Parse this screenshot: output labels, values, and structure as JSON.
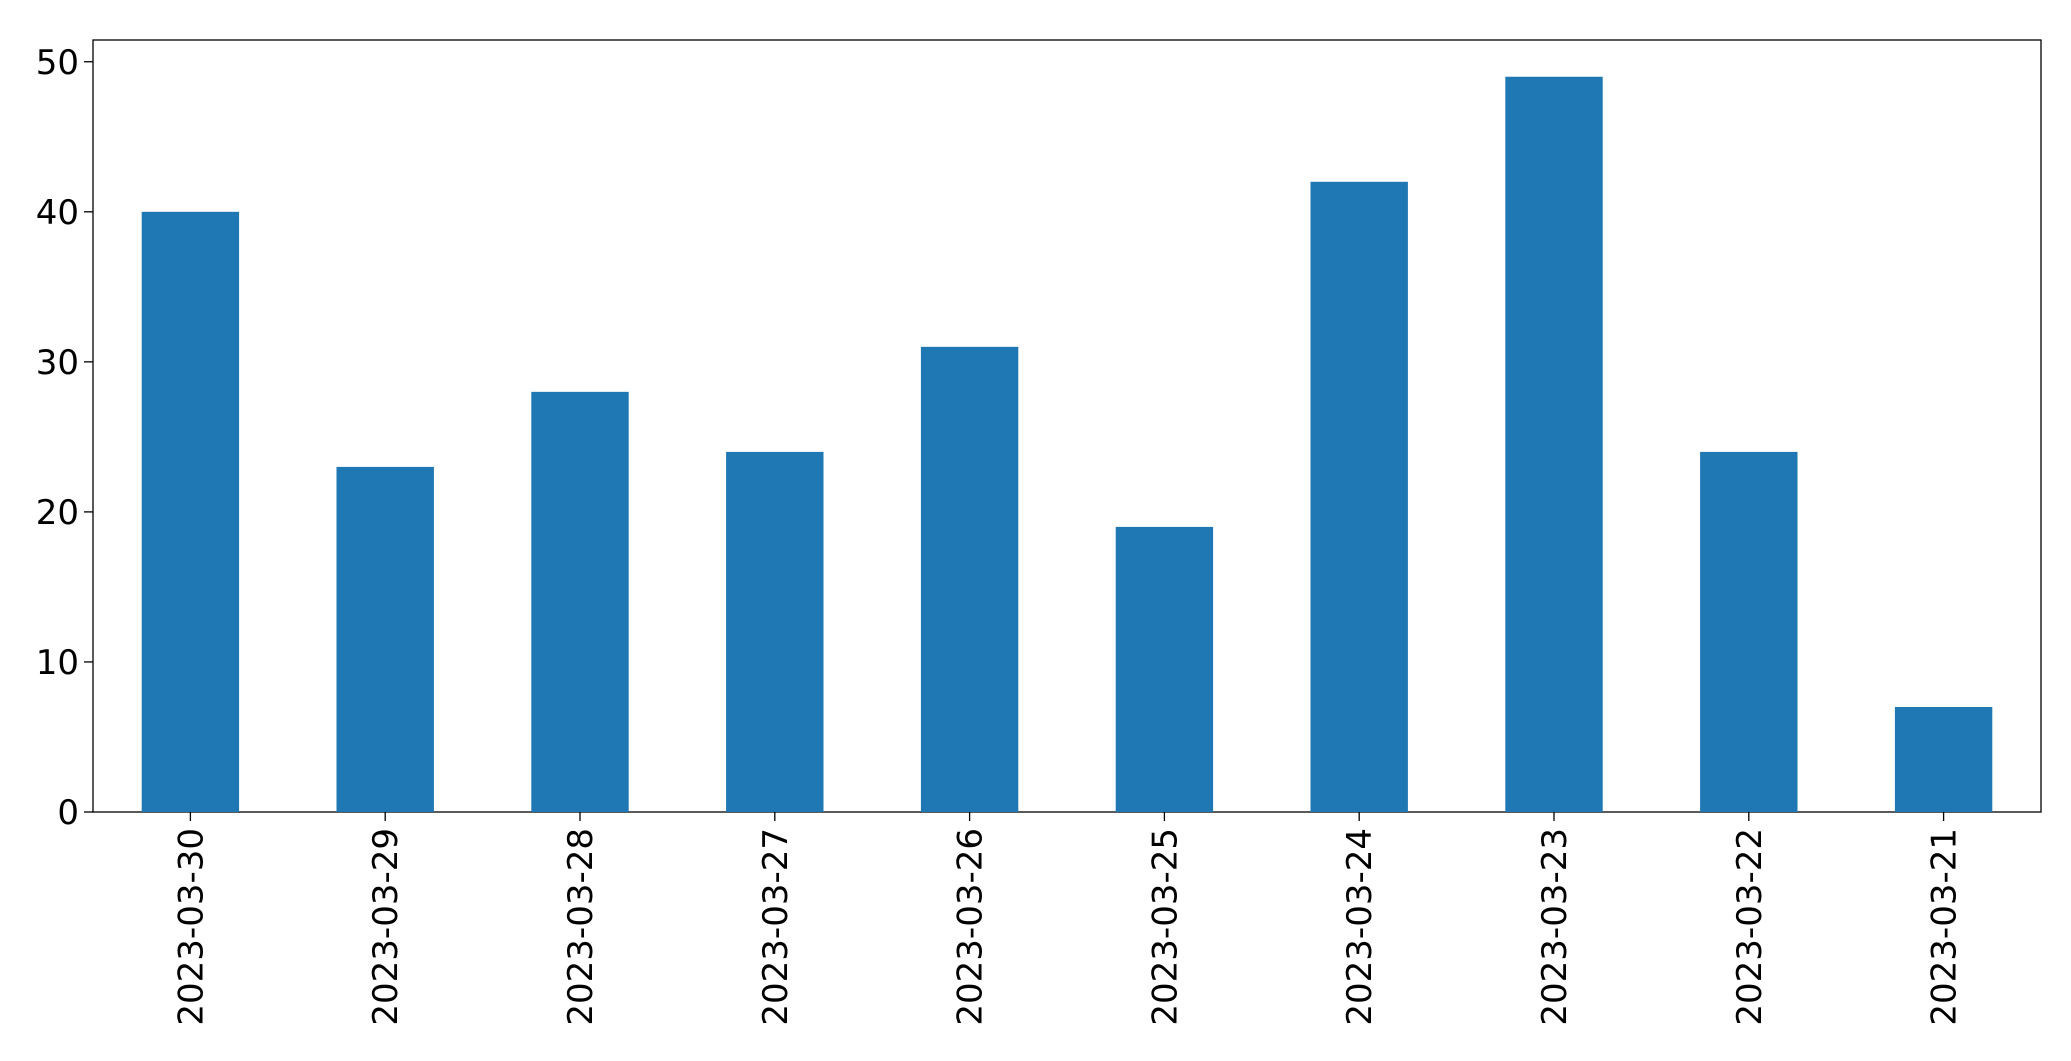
{
  "chart_data": {
    "type": "bar",
    "categories": [
      "2023-03-30",
      "2023-03-29",
      "2023-03-28",
      "2023-03-27",
      "2023-03-26",
      "2023-03-25",
      "2023-03-24",
      "2023-03-23",
      "2023-03-22",
      "2023-03-21"
    ],
    "values": [
      40,
      23,
      28,
      24,
      31,
      19,
      42,
      49,
      24,
      7
    ],
    "color": "#1f77b4",
    "ylim": [
      0,
      51.45
    ],
    "yticks": [
      0,
      10,
      20,
      30,
      40,
      50
    ],
    "grid": false
  }
}
